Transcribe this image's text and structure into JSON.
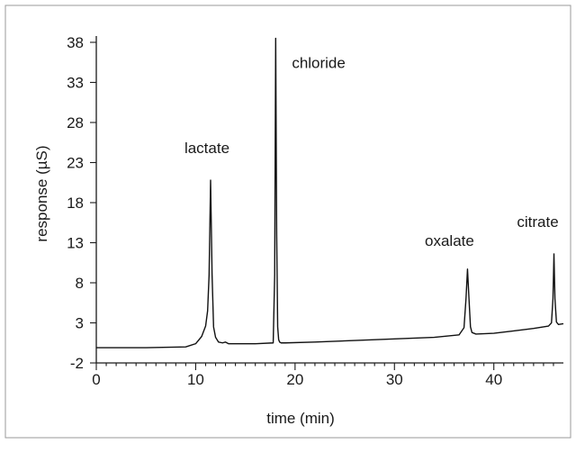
{
  "chart_data": {
    "type": "line",
    "title": "",
    "xlabel": "time (min)",
    "ylabel": "response (µS)",
    "xlim": [
      0,
      47
    ],
    "ylim": [
      -2,
      40
    ],
    "x_ticks": [
      0,
      10,
      20,
      30,
      40
    ],
    "y_ticks": [
      -2,
      3,
      8,
      13,
      18,
      23,
      28,
      33,
      38
    ],
    "grid": false,
    "series": [
      {
        "x": [
          0,
          5,
          9,
          10,
          10.6,
          11,
          11.2,
          11.35,
          11.5,
          11.65,
          11.8,
          12.0,
          12.3,
          12.7,
          13.0,
          13.3,
          14,
          16,
          17.8,
          17.95,
          18.05,
          18.15,
          18.25,
          18.35,
          18.45,
          18.6,
          19,
          22,
          26,
          30,
          34,
          36.5,
          37.0,
          37.2,
          37.35,
          37.5,
          37.65,
          37.8,
          38.2,
          40,
          42,
          44,
          45.5,
          45.8,
          45.95,
          46.05,
          46.15,
          46.3,
          46.5,
          47
        ],
        "y": [
          -0.1,
          -0.1,
          0.0,
          0.4,
          1.3,
          2.6,
          4.5,
          9.0,
          20.8,
          9.0,
          2.5,
          1.2,
          0.6,
          0.5,
          0.6,
          0.4,
          0.4,
          0.4,
          0.5,
          9.0,
          38.5,
          14.0,
          2.5,
          0.9,
          0.6,
          0.5,
          0.5,
          0.6,
          0.8,
          1.0,
          1.2,
          1.5,
          2.4,
          6.0,
          9.7,
          6.0,
          2.5,
          1.8,
          1.6,
          1.7,
          2.0,
          2.3,
          2.6,
          3.0,
          6.0,
          11.6,
          6.0,
          3.1,
          2.8,
          2.9
        ]
      }
    ],
    "annotations": [
      {
        "text": "lactate",
        "x": 11.5,
        "y": 20.8
      },
      {
        "text": "chloride",
        "x": 18.05,
        "y": 38.5
      },
      {
        "text": "oxalate",
        "x": 37.35,
        "y": 9.7
      },
      {
        "text": "citrate",
        "x": 46.05,
        "y": 11.6
      }
    ]
  }
}
